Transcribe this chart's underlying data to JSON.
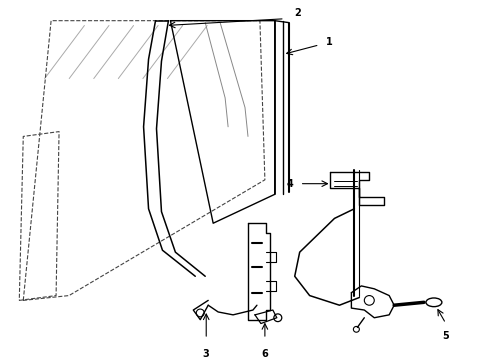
{
  "bg_color": "#ffffff",
  "line_color": "#000000",
  "gray_color": "#888888",
  "dash_color": "#444444",
  "fig_width": 4.9,
  "fig_height": 3.6,
  "dpi": 100
}
